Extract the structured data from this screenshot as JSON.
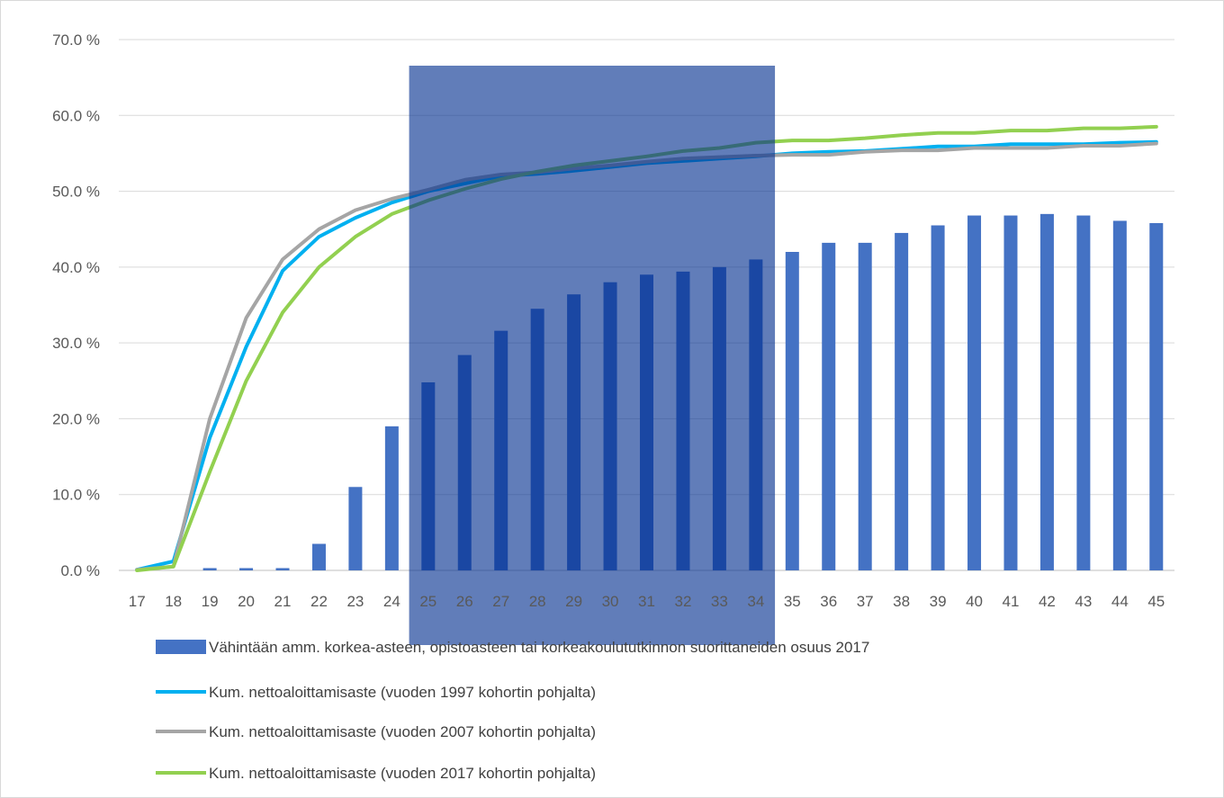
{
  "chart_data": {
    "type": "bar",
    "x": [
      17,
      18,
      19,
      20,
      21,
      22,
      23,
      24,
      25,
      26,
      27,
      28,
      29,
      30,
      31,
      32,
      33,
      34,
      35,
      36,
      37,
      38,
      39,
      40,
      41,
      42,
      43,
      44,
      45
    ],
    "ylim": [
      0,
      70
    ],
    "y_ticks": [
      "0.0 %",
      "10.0 %",
      "20.0 %",
      "30.0 %",
      "40.0 %",
      "50.0 %",
      "60.0 %",
      "70.0 %"
    ],
    "grid": true,
    "legend_position": "bottom",
    "highlight_range": [
      25,
      34
    ],
    "series": [
      {
        "name": "Vähintään amm. korkea-asteen, opistoasteen tai korkeakoulututkinnon suorittaneiden osuus 2017",
        "kind": "bar",
        "color": "#4472c4",
        "values": [
          0,
          0,
          0.3,
          0.3,
          0.3,
          3.5,
          11,
          19,
          24.8,
          28.4,
          31.6,
          34.5,
          36.4,
          38,
          39,
          39.4,
          40,
          41,
          42,
          43.2,
          43.2,
          44.5,
          45.5,
          46.8,
          46.8,
          47,
          46.8,
          46.1,
          45.8
        ]
      },
      {
        "name": "Kum. nettoaloittamisaste (vuoden 1997 kohortin pohjalta)",
        "kind": "line",
        "color": "#00b0f0",
        "values": [
          0.1,
          1.2,
          17.5,
          29.5,
          39.5,
          44,
          46.5,
          48.5,
          50,
          51,
          52,
          52.3,
          52.7,
          53.2,
          53.7,
          54,
          54.3,
          54.6,
          55,
          55.2,
          55.3,
          55.6,
          55.9,
          55.9,
          56.2,
          56.2,
          56.2,
          56.4,
          56.5
        ]
      },
      {
        "name": "Kum. nettoaloittamisaste (vuoden 2007 kohortin pohjalta)",
        "kind": "line",
        "color": "#a5a5a5",
        "values": [
          0.1,
          0.5,
          20,
          33.3,
          41,
          45,
          47.5,
          49,
          50.2,
          51.5,
          52.2,
          52.5,
          53,
          53.4,
          53.9,
          54.3,
          54.5,
          54.7,
          54.8,
          54.8,
          55.2,
          55.4,
          55.4,
          55.7,
          55.7,
          55.7,
          56,
          56,
          56.3
        ]
      },
      {
        "name": "Kum. nettoaloittamisaste (vuoden 2017 kohortin pohjalta)",
        "kind": "line",
        "color": "#92d050",
        "values": [
          0,
          0.5,
          13,
          25,
          34,
          40,
          44,
          47,
          48.8,
          50.3,
          51.6,
          52.6,
          53.4,
          54,
          54.6,
          55.3,
          55.7,
          56.4,
          56.7,
          56.7,
          57,
          57.4,
          57.7,
          57.7,
          58,
          58,
          58.3,
          58.3,
          58.5
        ]
      }
    ]
  }
}
